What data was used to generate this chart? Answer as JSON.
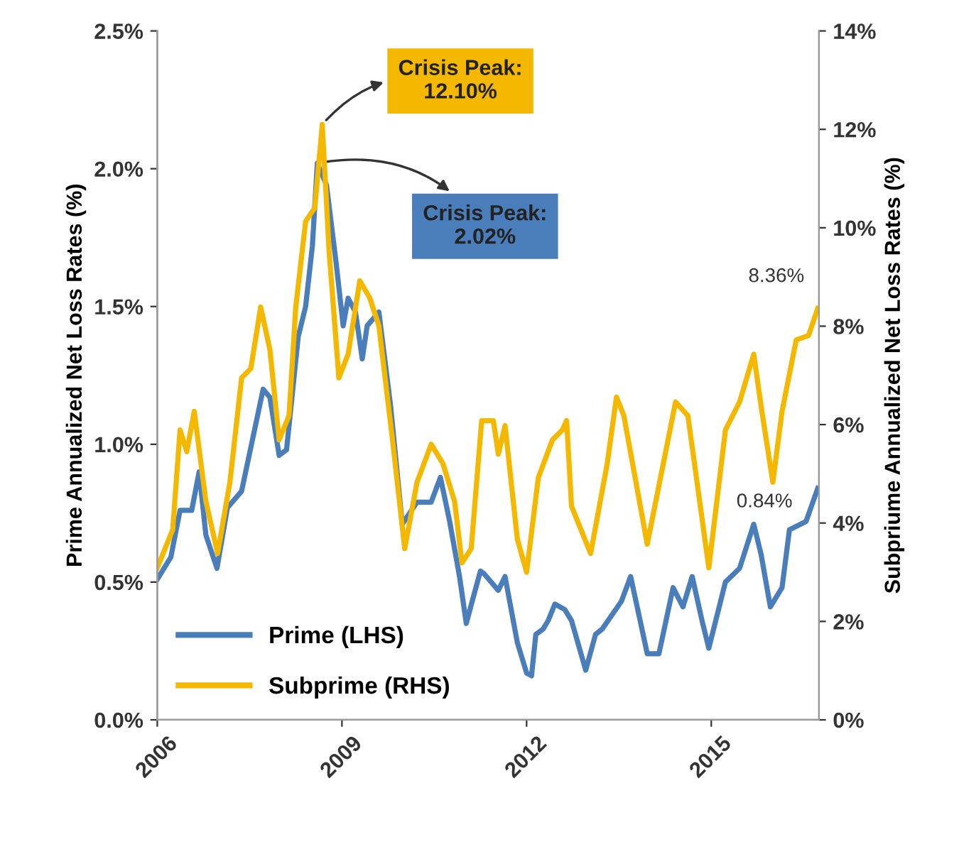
{
  "chart_data": {
    "type": "line",
    "ylabel": "Prime Annualized Net Loss Rates (%)",
    "y2label": "Subpriume Annualized Net Loss Rates (%)",
    "xlim": [
      2006,
      2016.75
    ],
    "xticks": [
      2006,
      2009,
      2012,
      2015
    ],
    "ylim": [
      0,
      2.5
    ],
    "yticks": [
      {
        "value": 0,
        "label": "0.0%"
      },
      {
        "value": 0.5,
        "label": "0.5%"
      },
      {
        "value": 1.0,
        "label": "1.0%"
      },
      {
        "value": 1.5,
        "label": "1.5%"
      },
      {
        "value": 2.0,
        "label": "2.0%"
      },
      {
        "value": 2.5,
        "label": "2.5%"
      }
    ],
    "y2lim": [
      0,
      14
    ],
    "y2ticks": [
      {
        "value": 0,
        "label": "0%"
      },
      {
        "value": 2,
        "label": "2%"
      },
      {
        "value": 4,
        "label": "4%"
      },
      {
        "value": 6,
        "label": "6%"
      },
      {
        "value": 8,
        "label": "8%"
      },
      {
        "value": 10,
        "label": "10%"
      },
      {
        "value": 12,
        "label": "12%"
      },
      {
        "value": 14,
        "label": "14%"
      }
    ],
    "grid": false,
    "legend": "bottom left",
    "marker": "none",
    "line_style": "solid",
    "series": [
      {
        "name": "Prime (LHS)",
        "color": "#4a7ebb",
        "axis": "y",
        "x": [
          2006.0,
          2006.22,
          2006.37,
          2006.56,
          2006.68,
          2006.79,
          2006.97,
          2007.14,
          2007.37,
          2007.72,
          2007.83,
          2007.98,
          2008.1,
          2008.29,
          2008.41,
          2008.52,
          2008.6,
          2008.75,
          2008.91,
          2009.02,
          2009.1,
          2009.22,
          2009.33,
          2009.41,
          2009.6,
          2009.79,
          2009.98,
          2010.22,
          2010.45,
          2010.6,
          2010.75,
          2010.91,
          2011.02,
          2011.14,
          2011.25,
          2011.31,
          2011.54,
          2011.65,
          2011.85,
          2012.0,
          2012.08,
          2012.15,
          2012.27,
          2012.35,
          2012.46,
          2012.62,
          2012.73,
          2012.96,
          2013.12,
          2013.23,
          2013.54,
          2013.69,
          2013.96,
          2014.15,
          2014.38,
          2014.54,
          2014.69,
          2014.85,
          2014.96,
          2015.23,
          2015.46,
          2015.69,
          2015.81,
          2015.96,
          2016.15,
          2016.27,
          2016.54,
          2016.73
        ],
        "values": [
          0.51,
          0.59,
          0.76,
          0.76,
          0.9,
          0.67,
          0.55,
          0.77,
          0.83,
          1.2,
          1.17,
          0.96,
          0.98,
          1.39,
          1.5,
          1.72,
          2.02,
          1.94,
          1.65,
          1.43,
          1.53,
          1.48,
          1.31,
          1.43,
          1.48,
          1.14,
          0.71,
          0.79,
          0.79,
          0.88,
          0.72,
          0.52,
          0.35,
          0.45,
          0.54,
          0.53,
          0.47,
          0.52,
          0.28,
          0.17,
          0.16,
          0.31,
          0.33,
          0.36,
          0.42,
          0.4,
          0.36,
          0.18,
          0.31,
          0.33,
          0.43,
          0.52,
          0.24,
          0.24,
          0.48,
          0.41,
          0.52,
          0.36,
          0.26,
          0.5,
          0.55,
          0.71,
          0.6,
          0.41,
          0.48,
          0.69,
          0.72,
          0.84
        ],
        "value_labels": [
          null,
          null,
          null,
          null,
          null,
          null,
          null,
          null,
          null,
          null,
          null,
          null,
          null,
          null,
          null,
          null,
          "Crisis Peak:\n2.02%",
          null,
          null,
          null,
          null,
          null,
          null,
          null,
          null,
          null,
          null,
          null,
          null,
          null,
          null,
          null,
          null,
          null,
          null,
          null,
          null,
          null,
          null,
          null,
          null,
          null,
          null,
          null,
          null,
          null,
          null,
          null,
          null,
          null,
          null,
          null,
          null,
          null,
          null,
          null,
          null,
          null,
          null,
          null,
          null,
          null,
          null,
          null,
          null,
          null,
          null,
          "0.84%"
        ]
      },
      {
        "name": "Subprime (RHS)",
        "color": "#f5b800",
        "axis": "y2",
        "x": [
          2006.0,
          2006.25,
          2006.37,
          2006.48,
          2006.6,
          2006.79,
          2006.98,
          2007.18,
          2007.37,
          2007.52,
          2007.68,
          2007.83,
          2007.98,
          2008.14,
          2008.25,
          2008.41,
          2008.56,
          2008.68,
          2008.79,
          2008.95,
          2009.1,
          2009.29,
          2009.45,
          2009.6,
          2009.83,
          2010.02,
          2010.22,
          2010.45,
          2010.64,
          2010.83,
          2010.95,
          2011.1,
          2011.27,
          2011.46,
          2011.54,
          2011.65,
          2011.85,
          2012.0,
          2012.19,
          2012.42,
          2012.58,
          2012.65,
          2012.73,
          2013.04,
          2013.31,
          2013.46,
          2013.58,
          2013.96,
          2014.42,
          2014.62,
          2014.96,
          2015.23,
          2015.46,
          2015.69,
          2015.81,
          2016.0,
          2016.15,
          2016.38,
          2016.58,
          2016.73
        ],
        "values": [
          3.09,
          3.86,
          5.89,
          5.45,
          6.27,
          4.44,
          3.38,
          4.83,
          6.95,
          7.14,
          8.39,
          7.52,
          5.69,
          6.18,
          8.39,
          10.13,
          10.41,
          12.1,
          9.55,
          6.95,
          7.43,
          8.92,
          8.58,
          8.01,
          5.6,
          3.48,
          4.83,
          5.6,
          5.21,
          4.44,
          3.19,
          3.48,
          6.08,
          6.08,
          5.4,
          5.98,
          3.67,
          3.0,
          4.92,
          5.69,
          5.89,
          6.08,
          4.34,
          3.38,
          5.21,
          6.56,
          6.18,
          3.57,
          6.46,
          6.18,
          3.09,
          5.89,
          6.46,
          7.43,
          6.37,
          4.83,
          6.27,
          7.72,
          7.81,
          8.36
        ],
        "value_labels": [
          null,
          null,
          null,
          null,
          null,
          null,
          null,
          null,
          null,
          null,
          null,
          null,
          null,
          null,
          null,
          null,
          null,
          "Crisis Peak:\n12.10%",
          null,
          null,
          null,
          null,
          null,
          null,
          null,
          null,
          null,
          null,
          null,
          null,
          null,
          null,
          null,
          null,
          null,
          null,
          null,
          null,
          null,
          null,
          null,
          null,
          null,
          null,
          null,
          null,
          null,
          null,
          null,
          null,
          null,
          null,
          null,
          null,
          null,
          null,
          null,
          null,
          null,
          "8.36%"
        ]
      }
    ]
  }
}
